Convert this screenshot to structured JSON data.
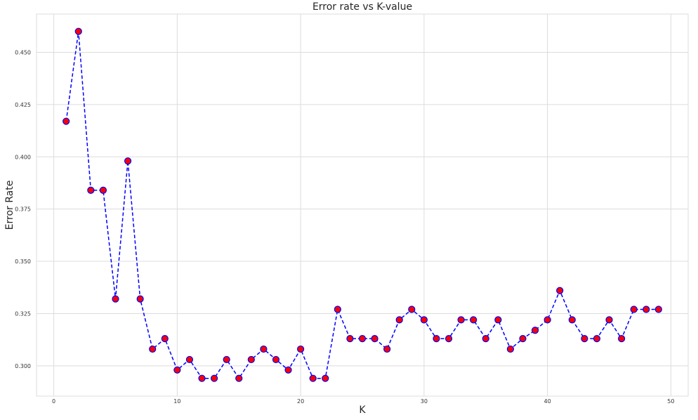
{
  "chart_data": {
    "type": "line",
    "title": "Error rate vs K-value",
    "xlabel": "K",
    "ylabel": "Error Rate",
    "xlim": [
      -1.4,
      51.4
    ],
    "ylim": [
      0.2855,
      0.4683
    ],
    "xticks": [
      0,
      10,
      20,
      30,
      40,
      50
    ],
    "xtick_labels": [
      "0",
      "10",
      "20",
      "30",
      "40",
      "50"
    ],
    "yticks": [
      0.3,
      0.325,
      0.35,
      0.375,
      0.4,
      0.425,
      0.45
    ],
    "ytick_labels": [
      "0.300",
      "0.325",
      "0.350",
      "0.375",
      "0.400",
      "0.425",
      "0.450"
    ],
    "grid": true,
    "line_color": "#0000ff",
    "line_style": "dashed",
    "marker_face_color": "#ff0000",
    "marker_edge_color": "#0000ff",
    "x": [
      1,
      2,
      3,
      4,
      5,
      6,
      7,
      8,
      9,
      10,
      11,
      12,
      13,
      14,
      15,
      16,
      17,
      18,
      19,
      20,
      21,
      22,
      23,
      24,
      25,
      26,
      27,
      28,
      29,
      30,
      31,
      32,
      33,
      34,
      35,
      36,
      37,
      38,
      39,
      40,
      41,
      42,
      43,
      44,
      45,
      46,
      47,
      48,
      49
    ],
    "y": [
      0.417,
      0.46,
      0.384,
      0.384,
      0.332,
      0.398,
      0.332,
      0.308,
      0.313,
      0.298,
      0.303,
      0.294,
      0.294,
      0.303,
      0.294,
      0.303,
      0.308,
      0.303,
      0.298,
      0.308,
      0.294,
      0.294,
      0.327,
      0.313,
      0.313,
      0.313,
      0.308,
      0.322,
      0.327,
      0.322,
      0.313,
      0.313,
      0.322,
      0.322,
      0.313,
      0.322,
      0.308,
      0.313,
      0.317,
      0.322,
      0.336,
      0.322,
      0.313,
      0.313,
      0.322,
      0.313,
      0.327,
      0.327,
      0.327
    ]
  }
}
